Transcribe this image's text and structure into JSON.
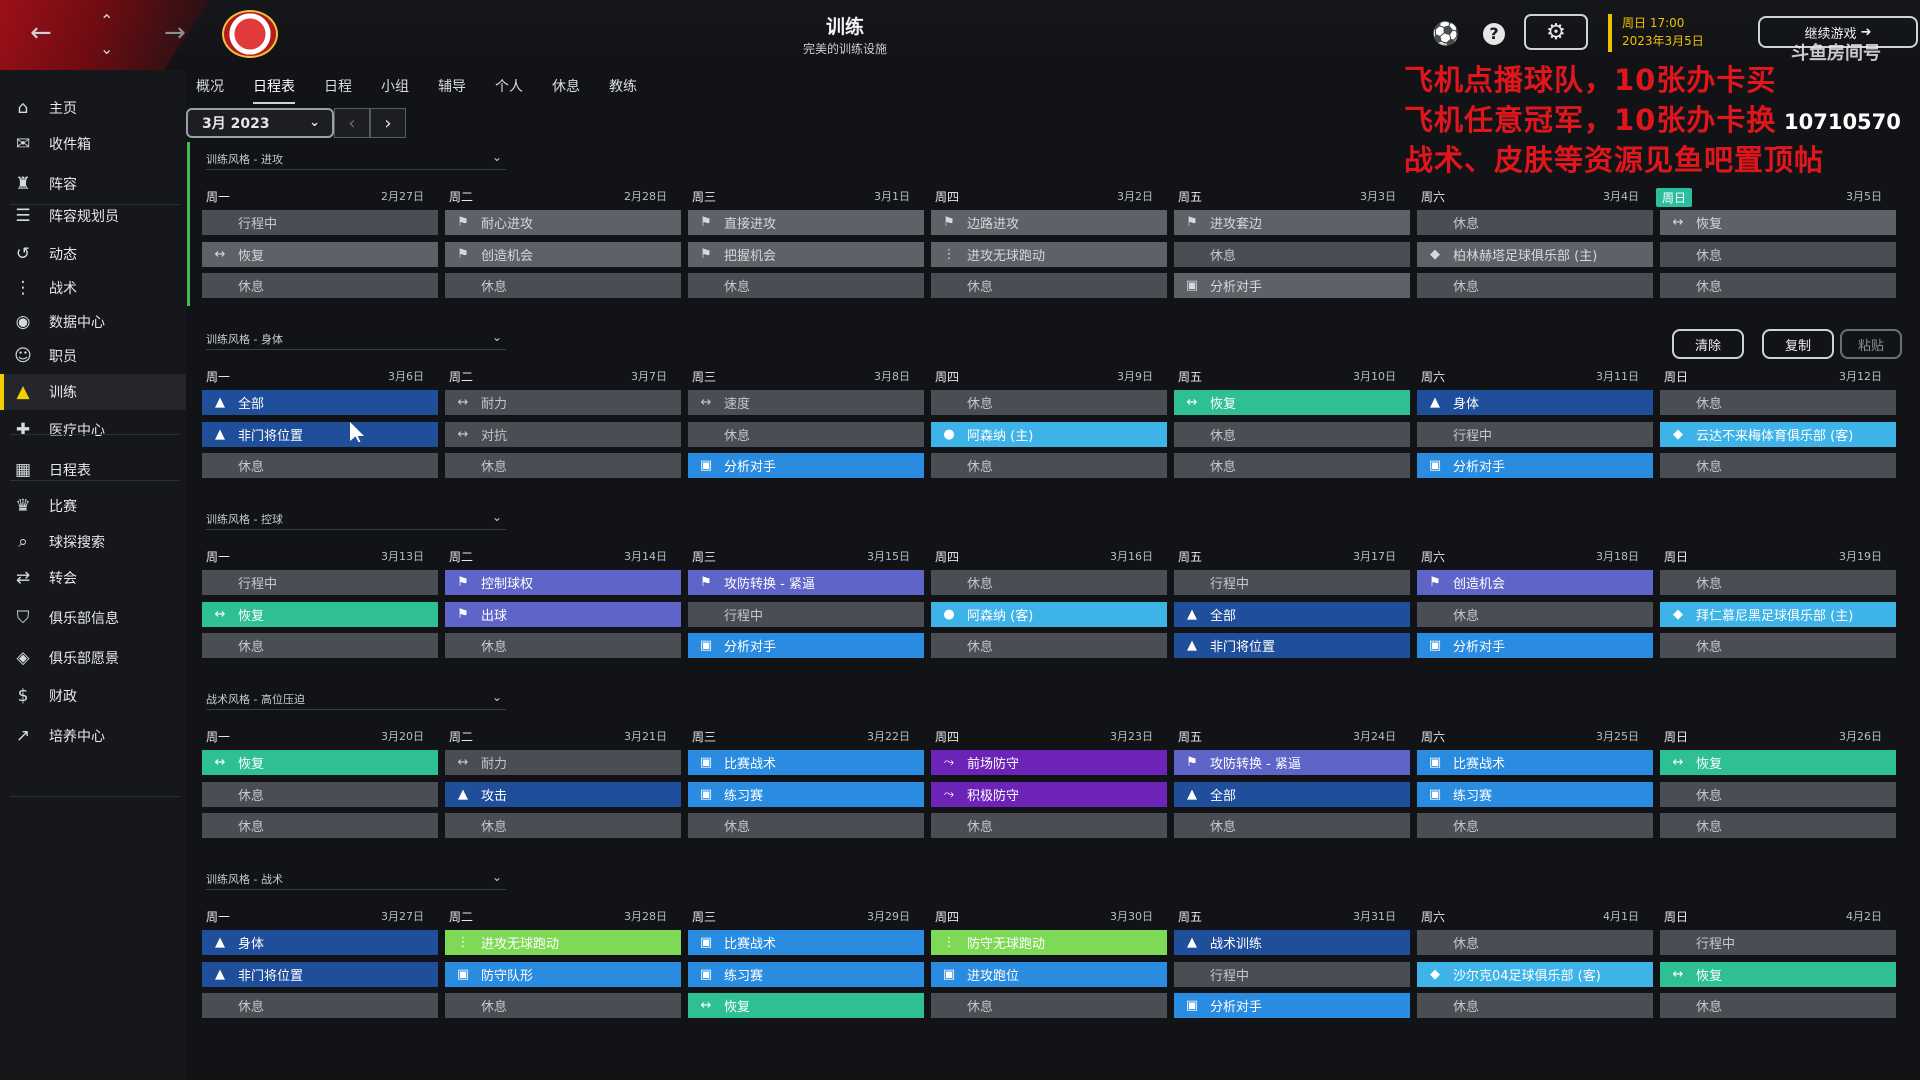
{
  "header": {
    "title": "训练",
    "subtitle": "完美的训练设施",
    "datetime_line1": "周日 17:00",
    "datetime_line2": "2023年3月5日",
    "continue_label": "继续游戏",
    "overlay_lines": [
      "飞机点播球队，10张办卡买",
      "飞机任意冠军，10张办卡换",
      "战术、皮肤等资源见鱼吧置顶帖"
    ],
    "room_label": "斗鱼房间号",
    "room_number": "10710570",
    "icons": [
      "back-arrow-icon",
      "up-chevron-icon",
      "down-chevron-icon",
      "forward-arrow-icon",
      "club-crest",
      "ball-icon",
      "help-icon",
      "gear-icon"
    ]
  },
  "sidebar": {
    "items": [
      {
        "label": "主页",
        "icon": "home-icon"
      },
      {
        "label": "收件箱",
        "icon": "inbox-icon"
      },
      {
        "label": "阵容",
        "icon": "squad-icon"
      },
      {
        "label": "阵容规划员",
        "icon": "planner-icon"
      },
      {
        "label": "动态",
        "icon": "dynamics-icon"
      },
      {
        "label": "战术",
        "icon": "tactics-icon"
      },
      {
        "label": "数据中心",
        "icon": "data-icon"
      },
      {
        "label": "职员",
        "icon": "staff-icon"
      },
      {
        "label": "训练",
        "icon": "training-icon",
        "active": true
      },
      {
        "label": "医疗中心",
        "icon": "medical-icon"
      },
      {
        "label": "日程表",
        "icon": "calendar-icon"
      },
      {
        "label": "比赛",
        "icon": "trophy-icon"
      },
      {
        "label": "球探搜索",
        "icon": "search-icon"
      },
      {
        "label": "转会",
        "icon": "transfer-icon"
      },
      {
        "label": "俱乐部信息",
        "icon": "shield-icon"
      },
      {
        "label": "俱乐部愿景",
        "icon": "vision-icon"
      },
      {
        "label": "财政",
        "icon": "finance-icon"
      },
      {
        "label": "培养中心",
        "icon": "development-icon"
      }
    ]
  },
  "tabs": [
    "概况",
    "日程表",
    "日程",
    "小组",
    "辅导",
    "个人",
    "休息",
    "教练"
  ],
  "active_tab": "日程表",
  "month_selector": "3月 2023",
  "actions": {
    "clear": "清除",
    "copy": "复制",
    "paste": "粘贴"
  },
  "weeks": [
    {
      "style": "训练风格 - 进攻",
      "days": [
        {
          "name": "周一",
          "date": "2月27日",
          "slots": [
            {
              "t": "行程中",
              "c": "run",
              "i": ""
            },
            {
              "t": "恢复",
              "c": "gray",
              "i": "↔"
            },
            {
              "t": "休息",
              "c": "rest",
              "i": ""
            }
          ]
        },
        {
          "name": "周二",
          "date": "2月28日",
          "slots": [
            {
              "t": "耐心进攻",
              "c": "gray",
              "i": "⚑"
            },
            {
              "t": "创造机会",
              "c": "gray",
              "i": "⚑"
            },
            {
              "t": "休息",
              "c": "rest",
              "i": ""
            }
          ]
        },
        {
          "name": "周三",
          "date": "3月1日",
          "slots": [
            {
              "t": "直接进攻",
              "c": "gray",
              "i": "⚑"
            },
            {
              "t": "把握机会",
              "c": "gray",
              "i": "⚑"
            },
            {
              "t": "休息",
              "c": "rest",
              "i": ""
            }
          ]
        },
        {
          "name": "周四",
          "date": "3月2日",
          "slots": [
            {
              "t": "边路进攻",
              "c": "gray",
              "i": "⚑"
            },
            {
              "t": "进攻无球跑动",
              "c": "gray",
              "i": "⋮"
            },
            {
              "t": "休息",
              "c": "rest",
              "i": ""
            }
          ]
        },
        {
          "name": "周五",
          "date": "3月3日",
          "slots": [
            {
              "t": "进攻套边",
              "c": "gray",
              "i": "⚑"
            },
            {
              "t": "休息",
              "c": "rest",
              "i": ""
            },
            {
              "t": "分析对手",
              "c": "gray",
              "i": "▣"
            }
          ]
        },
        {
          "name": "周六",
          "date": "3月4日",
          "slots": [
            {
              "t": "休息",
              "c": "rest",
              "i": ""
            },
            {
              "t": "柏林赫塔足球俱乐部 (主)",
              "c": "gray",
              "i": "◆"
            },
            {
              "t": "休息",
              "c": "rest",
              "i": ""
            }
          ]
        },
        {
          "name": "周日",
          "date": "3月5日",
          "today": true,
          "slots": [
            {
              "t": "恢复",
              "c": "gray",
              "i": "↔"
            },
            {
              "t": "休息",
              "c": "rest",
              "i": ""
            },
            {
              "t": "休息",
              "c": "rest",
              "i": ""
            }
          ]
        }
      ]
    },
    {
      "style": "训练风格 - 身体",
      "days": [
        {
          "name": "周一",
          "date": "3月6日",
          "slots": [
            {
              "t": "全部",
              "c": "navy",
              "i": "▲"
            },
            {
              "t": "非门将位置",
              "c": "navy",
              "i": "▲"
            },
            {
              "t": "休息",
              "c": "rest",
              "i": ""
            }
          ]
        },
        {
          "name": "周二",
          "date": "3月7日",
          "slots": [
            {
              "t": "耐力",
              "c": "rest",
              "i": "↔"
            },
            {
              "t": "对抗",
              "c": "rest",
              "i": "↔"
            },
            {
              "t": "休息",
              "c": "rest",
              "i": ""
            }
          ]
        },
        {
          "name": "周三",
          "date": "3月8日",
          "slots": [
            {
              "t": "速度",
              "c": "rest",
              "i": "↔"
            },
            {
              "t": "休息",
              "c": "rest",
              "i": ""
            },
            {
              "t": "分析对手",
              "c": "blue",
              "i": "▣"
            }
          ]
        },
        {
          "name": "周四",
          "date": "3月9日",
          "slots": [
            {
              "t": "休息",
              "c": "rest",
              "i": ""
            },
            {
              "t": "阿森纳 (主)",
              "c": "sky",
              "i": "●"
            },
            {
              "t": "休息",
              "c": "rest",
              "i": ""
            }
          ]
        },
        {
          "name": "周五",
          "date": "3月10日",
          "slots": [
            {
              "t": "恢复",
              "c": "teal",
              "i": "↔"
            },
            {
              "t": "休息",
              "c": "rest",
              "i": ""
            },
            {
              "t": "休息",
              "c": "rest",
              "i": ""
            }
          ]
        },
        {
          "name": "周六",
          "date": "3月11日",
          "slots": [
            {
              "t": "身体",
              "c": "navy",
              "i": "▲"
            },
            {
              "t": "行程中",
              "c": "run",
              "i": ""
            },
            {
              "t": "分析对手",
              "c": "blue",
              "i": "▣"
            }
          ]
        },
        {
          "name": "周日",
          "date": "3月12日",
          "slots": [
            {
              "t": "休息",
              "c": "rest",
              "i": ""
            },
            {
              "t": "云达不来梅体育俱乐部 (客)",
              "c": "sky",
              "i": "◆"
            },
            {
              "t": "休息",
              "c": "rest",
              "i": ""
            }
          ]
        }
      ]
    },
    {
      "style": "训练风格 - 控球",
      "days": [
        {
          "name": "周一",
          "date": "3月13日",
          "slots": [
            {
              "t": "行程中",
              "c": "run",
              "i": ""
            },
            {
              "t": "恢复",
              "c": "teal",
              "i": "↔"
            },
            {
              "t": "休息",
              "c": "rest",
              "i": ""
            }
          ]
        },
        {
          "name": "周二",
          "date": "3月14日",
          "slots": [
            {
              "t": "控制球权",
              "c": "purple",
              "i": "⚑"
            },
            {
              "t": "出球",
              "c": "purple",
              "i": "⚑"
            },
            {
              "t": "休息",
              "c": "rest",
              "i": ""
            }
          ]
        },
        {
          "name": "周三",
          "date": "3月15日",
          "slots": [
            {
              "t": "攻防转换 - 紧逼",
              "c": "purple",
              "i": "⚑"
            },
            {
              "t": "行程中",
              "c": "run",
              "i": ""
            },
            {
              "t": "分析对手",
              "c": "blue",
              "i": "▣"
            }
          ]
        },
        {
          "name": "周四",
          "date": "3月16日",
          "slots": [
            {
              "t": "休息",
              "c": "rest",
              "i": ""
            },
            {
              "t": "阿森纳 (客)",
              "c": "sky",
              "i": "●"
            },
            {
              "t": "休息",
              "c": "rest",
              "i": ""
            }
          ]
        },
        {
          "name": "周五",
          "date": "3月17日",
          "slots": [
            {
              "t": "行程中",
              "c": "run",
              "i": ""
            },
            {
              "t": "全部",
              "c": "navy",
              "i": "▲"
            },
            {
              "t": "非门将位置",
              "c": "navy",
              "i": "▲"
            }
          ]
        },
        {
          "name": "周六",
          "date": "3月18日",
          "slots": [
            {
              "t": "创造机会",
              "c": "purple",
              "i": "⚑"
            },
            {
              "t": "休息",
              "c": "rest",
              "i": ""
            },
            {
              "t": "分析对手",
              "c": "blue",
              "i": "▣"
            }
          ]
        },
        {
          "name": "周日",
          "date": "3月19日",
          "slots": [
            {
              "t": "休息",
              "c": "rest",
              "i": ""
            },
            {
              "t": "拜仁慕尼黑足球俱乐部 (主)",
              "c": "sky",
              "i": "◆"
            },
            {
              "t": "休息",
              "c": "rest",
              "i": ""
            }
          ]
        }
      ]
    },
    {
      "style": "战术风格 - 高位压迫",
      "days": [
        {
          "name": "周一",
          "date": "3月20日",
          "slots": [
            {
              "t": "恢复",
              "c": "teal",
              "i": "↔"
            },
            {
              "t": "休息",
              "c": "rest",
              "i": ""
            },
            {
              "t": "休息",
              "c": "rest",
              "i": ""
            }
          ]
        },
        {
          "name": "周二",
          "date": "3月21日",
          "slots": [
            {
              "t": "耐力",
              "c": "rest",
              "i": "↔"
            },
            {
              "t": "攻击",
              "c": "navy",
              "i": "▲"
            },
            {
              "t": "休息",
              "c": "rest",
              "i": ""
            }
          ]
        },
        {
          "name": "周三",
          "date": "3月22日",
          "slots": [
            {
              "t": "比赛战术",
              "c": "blue",
              "i": "▣"
            },
            {
              "t": "练习赛",
              "c": "blue",
              "i": "▣"
            },
            {
              "t": "休息",
              "c": "rest",
              "i": ""
            }
          ]
        },
        {
          "name": "周四",
          "date": "3月23日",
          "slots": [
            {
              "t": "前场防守",
              "c": "violet",
              "i": "⤳"
            },
            {
              "t": "积极防守",
              "c": "violet",
              "i": "⤳"
            },
            {
              "t": "休息",
              "c": "rest",
              "i": ""
            }
          ]
        },
        {
          "name": "周五",
          "date": "3月24日",
          "slots": [
            {
              "t": "攻防转换 - 紧逼",
              "c": "purple",
              "i": "⚑"
            },
            {
              "t": "全部",
              "c": "navy",
              "i": "▲"
            },
            {
              "t": "休息",
              "c": "rest",
              "i": ""
            }
          ]
        },
        {
          "name": "周六",
          "date": "3月25日",
          "slots": [
            {
              "t": "比赛战术",
              "c": "blue",
              "i": "▣"
            },
            {
              "t": "练习赛",
              "c": "blue",
              "i": "▣"
            },
            {
              "t": "休息",
              "c": "rest",
              "i": ""
            }
          ]
        },
        {
          "name": "周日",
          "date": "3月26日",
          "slots": [
            {
              "t": "恢复",
              "c": "teal",
              "i": "↔"
            },
            {
              "t": "休息",
              "c": "rest",
              "i": ""
            },
            {
              "t": "休息",
              "c": "rest",
              "i": ""
            }
          ]
        }
      ]
    },
    {
      "style": "训练风格 - 战术",
      "days": [
        {
          "name": "周一",
          "date": "3月27日",
          "slots": [
            {
              "t": "身体",
              "c": "navy",
              "i": "▲"
            },
            {
              "t": "非门将位置",
              "c": "navy",
              "i": "▲"
            },
            {
              "t": "休息",
              "c": "rest",
              "i": ""
            }
          ]
        },
        {
          "name": "周二",
          "date": "3月28日",
          "slots": [
            {
              "t": "进攻无球跑动",
              "c": "green",
              "i": "⋮"
            },
            {
              "t": "防守队形",
              "c": "blue",
              "i": "▣"
            },
            {
              "t": "休息",
              "c": "rest",
              "i": ""
            }
          ]
        },
        {
          "name": "周三",
          "date": "3月29日",
          "slots": [
            {
              "t": "比赛战术",
              "c": "blue",
              "i": "▣"
            },
            {
              "t": "练习赛",
              "c": "blue",
              "i": "▣"
            },
            {
              "t": "恢复",
              "c": "teal",
              "i": "↔"
            }
          ]
        },
        {
          "name": "周四",
          "date": "3月30日",
          "slots": [
            {
              "t": "防守无球跑动",
              "c": "green",
              "i": "⋮"
            },
            {
              "t": "进攻跑位",
              "c": "blue",
              "i": "▣"
            },
            {
              "t": "休息",
              "c": "rest",
              "i": ""
            }
          ]
        },
        {
          "name": "周五",
          "date": "3月31日",
          "slots": [
            {
              "t": "战术训练",
              "c": "navy",
              "i": "▲"
            },
            {
              "t": "行程中",
              "c": "run",
              "i": ""
            },
            {
              "t": "分析对手",
              "c": "blue",
              "i": "▣"
            }
          ]
        },
        {
          "name": "周六",
          "date": "4月1日",
          "slots": [
            {
              "t": "休息",
              "c": "rest",
              "i": ""
            },
            {
              "t": "沙尔克04足球俱乐部 (客)",
              "c": "sky",
              "i": "◆"
            },
            {
              "t": "休息",
              "c": "rest",
              "i": ""
            }
          ]
        },
        {
          "name": "周日",
          "date": "4月2日",
          "slots": [
            {
              "t": "行程中",
              "c": "run",
              "i": ""
            },
            {
              "t": "恢复",
              "c": "teal",
              "i": "↔"
            },
            {
              "t": "休息",
              "c": "rest",
              "i": ""
            }
          ]
        }
      ]
    }
  ]
}
